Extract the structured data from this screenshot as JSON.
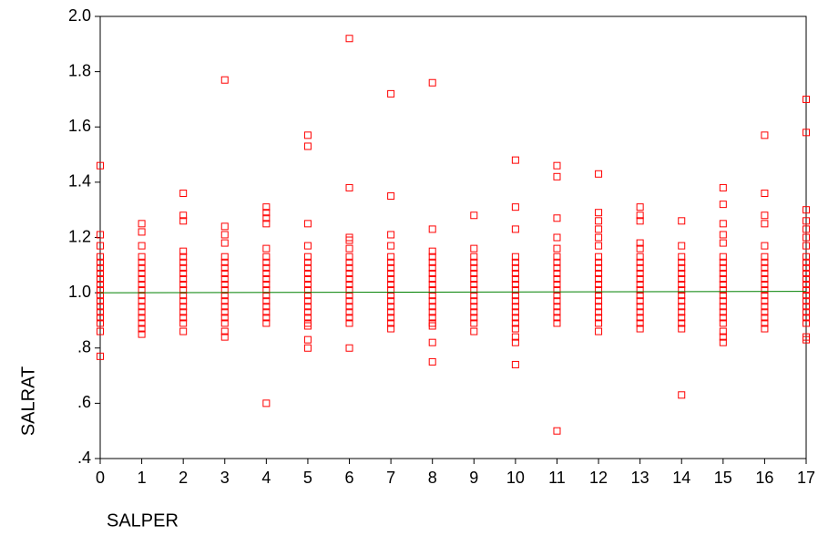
{
  "chart_data": {
    "type": "scatter",
    "x_label": "SALPER",
    "y_label": "SALRAT",
    "xlim": [
      0,
      17
    ],
    "ylim": [
      0.4,
      2.0
    ],
    "xticks": [
      0,
      1,
      2,
      3,
      4,
      5,
      6,
      7,
      8,
      9,
      10,
      11,
      12,
      13,
      14,
      15,
      16,
      17
    ],
    "yticks": [
      {
        "value": 0.4,
        "label": ".4"
      },
      {
        "value": 0.6,
        "label": ".6"
      },
      {
        "value": 0.8,
        "label": ".8"
      },
      {
        "value": 1.0,
        "label": "1.0"
      },
      1.2,
      1.4,
      1.6,
      1.8,
      {
        "value": 2.0,
        "label": "2.0"
      }
    ],
    "marker": "square",
    "marker_color": "#ff0000",
    "groups": [
      {
        "x": 0,
        "values": [
          0.89,
          0.91,
          0.93,
          0.95,
          0.97,
          0.99,
          1.01,
          1.03,
          1.05,
          1.07,
          1.09,
          1.11,
          1.13,
          1.46,
          1.21,
          1.17,
          0.86,
          0.77
        ]
      },
      {
        "x": 1,
        "values": [
          0.89,
          0.91,
          0.93,
          0.95,
          0.97,
          0.99,
          1.01,
          1.03,
          1.05,
          1.07,
          1.09,
          1.11,
          1.13,
          1.25,
          1.22,
          1.17,
          0.85,
          0.87
        ]
      },
      {
        "x": 2,
        "values": [
          0.89,
          0.91,
          0.93,
          0.95,
          0.97,
          0.99,
          1.01,
          1.03,
          1.05,
          1.07,
          1.09,
          1.11,
          1.13,
          1.36,
          1.28,
          1.26,
          1.15,
          0.86
        ]
      },
      {
        "x": 3,
        "values": [
          0.89,
          0.91,
          0.93,
          0.95,
          0.97,
          0.99,
          1.01,
          1.03,
          1.05,
          1.07,
          1.09,
          1.11,
          1.13,
          1.77,
          1.24,
          1.21,
          1.18,
          0.86,
          0.84
        ]
      },
      {
        "x": 4,
        "values": [
          0.89,
          0.91,
          0.93,
          0.95,
          0.97,
          0.99,
          1.01,
          1.03,
          1.05,
          1.07,
          1.09,
          1.11,
          1.13,
          1.31,
          1.29,
          1.27,
          1.25,
          1.16,
          0.6
        ]
      },
      {
        "x": 5,
        "values": [
          0.89,
          0.91,
          0.93,
          0.95,
          0.97,
          0.99,
          1.01,
          1.03,
          1.05,
          1.07,
          1.09,
          1.11,
          1.13,
          1.57,
          1.53,
          1.25,
          1.17,
          0.88,
          0.83,
          0.8
        ]
      },
      {
        "x": 6,
        "values": [
          0.89,
          0.91,
          0.93,
          0.95,
          0.97,
          0.99,
          1.01,
          1.03,
          1.05,
          1.07,
          1.09,
          1.11,
          1.13,
          1.92,
          1.38,
          1.2,
          1.19,
          1.16,
          0.8
        ]
      },
      {
        "x": 7,
        "values": [
          0.89,
          0.91,
          0.93,
          0.95,
          0.97,
          0.99,
          1.01,
          1.03,
          1.05,
          1.07,
          1.09,
          1.11,
          1.13,
          1.72,
          1.35,
          1.21,
          1.17,
          0.87
        ]
      },
      {
        "x": 8,
        "values": [
          0.89,
          0.91,
          0.93,
          0.95,
          0.97,
          0.99,
          1.01,
          1.03,
          1.05,
          1.07,
          1.09,
          1.11,
          1.13,
          1.76,
          1.23,
          1.15,
          0.88,
          0.82,
          0.75
        ]
      },
      {
        "x": 9,
        "values": [
          0.89,
          0.91,
          0.93,
          0.95,
          0.97,
          0.99,
          1.01,
          1.03,
          1.05,
          1.07,
          1.09,
          1.11,
          1.13,
          1.28,
          1.16,
          0.86
        ]
      },
      {
        "x": 10,
        "values": [
          0.89,
          0.91,
          0.93,
          0.95,
          0.97,
          0.99,
          1.01,
          1.03,
          1.05,
          1.07,
          1.09,
          1.11,
          1.13,
          1.48,
          1.31,
          1.23,
          0.87,
          0.84,
          0.82,
          0.74
        ]
      },
      {
        "x": 11,
        "values": [
          0.89,
          0.91,
          0.93,
          0.95,
          0.97,
          0.99,
          1.01,
          1.03,
          1.05,
          1.07,
          1.09,
          1.11,
          1.13,
          1.46,
          1.42,
          1.27,
          1.2,
          1.16,
          0.5
        ]
      },
      {
        "x": 12,
        "values": [
          0.89,
          0.91,
          0.93,
          0.95,
          0.97,
          0.99,
          1.01,
          1.03,
          1.05,
          1.07,
          1.09,
          1.11,
          1.13,
          1.43,
          1.29,
          1.26,
          1.23,
          1.2,
          1.17,
          0.86
        ]
      },
      {
        "x": 13,
        "values": [
          0.89,
          0.91,
          0.93,
          0.95,
          0.97,
          0.99,
          1.01,
          1.03,
          1.05,
          1.07,
          1.09,
          1.11,
          1.13,
          1.31,
          1.28,
          1.26,
          1.18,
          1.16,
          0.87
        ]
      },
      {
        "x": 14,
        "values": [
          0.89,
          0.91,
          0.93,
          0.95,
          0.97,
          0.99,
          1.01,
          1.03,
          1.05,
          1.07,
          1.09,
          1.11,
          1.13,
          1.26,
          1.17,
          0.87,
          0.63
        ]
      },
      {
        "x": 15,
        "values": [
          0.89,
          0.91,
          0.93,
          0.95,
          0.97,
          0.99,
          1.01,
          1.03,
          1.05,
          1.07,
          1.09,
          1.11,
          1.13,
          1.38,
          1.32,
          1.25,
          1.21,
          1.18,
          0.86,
          0.84,
          0.82
        ]
      },
      {
        "x": 16,
        "values": [
          0.89,
          0.91,
          0.93,
          0.95,
          0.97,
          0.99,
          1.01,
          1.03,
          1.05,
          1.07,
          1.09,
          1.11,
          1.13,
          1.57,
          1.36,
          1.28,
          1.25,
          1.17,
          0.87
        ]
      },
      {
        "x": 17,
        "values": [
          0.89,
          0.91,
          0.93,
          0.95,
          0.97,
          0.99,
          1.01,
          1.03,
          1.05,
          1.07,
          1.09,
          1.11,
          1.13,
          1.7,
          1.58,
          1.3,
          1.26,
          1.23,
          1.2,
          1.17,
          0.84,
          0.83
        ]
      }
    ],
    "fit_line": {
      "color": "#008000",
      "x": [
        0,
        17
      ],
      "values": [
        1.0,
        1.005
      ]
    }
  }
}
